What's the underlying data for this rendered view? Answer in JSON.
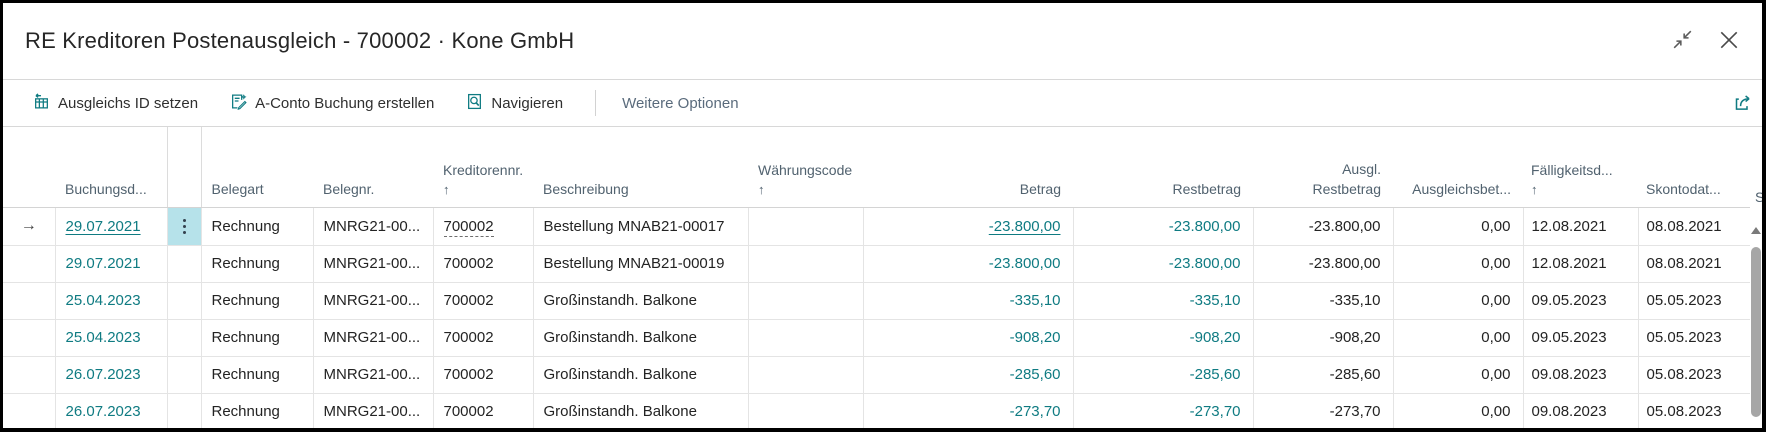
{
  "window": {
    "title": "RE Kreditoren Postenausgleich - 700002 · Kone GmbH"
  },
  "toolbar": {
    "actions": [
      {
        "label": "Ausgleichs ID setzen",
        "icon": "set-applies-id-icon"
      },
      {
        "label": "A-Conto Buchung erstellen",
        "icon": "create-prepayment-icon"
      },
      {
        "label": "Navigieren",
        "icon": "navigate-icon"
      }
    ],
    "more_label": "Weitere Optionen",
    "share_icon": "share-icon"
  },
  "colors": {
    "accent_teal": "#0f7b82",
    "selected_cell_bg": "#b6e2ea",
    "header_text": "#51626f"
  },
  "table": {
    "partial_column_label": "S",
    "columns": [
      {
        "key": "marker",
        "lines": [],
        "align": "center",
        "type": "row-marker"
      },
      {
        "key": "buchungsdatum",
        "lines": [
          "Buchungsd..."
        ],
        "align": "left"
      },
      {
        "key": "menu",
        "lines": [],
        "align": "center",
        "type": "row-menu"
      },
      {
        "key": "belegart",
        "lines": [
          "Belegart"
        ],
        "align": "left"
      },
      {
        "key": "belegnr",
        "lines": [
          "Belegnr."
        ],
        "align": "left"
      },
      {
        "key": "kreditorennr",
        "lines": [
          "Kreditorennr."
        ],
        "align": "left",
        "sort": "asc"
      },
      {
        "key": "beschreibung",
        "lines": [
          "Beschreibung"
        ],
        "align": "left"
      },
      {
        "key": "waehrungscode",
        "lines": [
          "Währungscode"
        ],
        "align": "left",
        "sort": "asc"
      },
      {
        "key": "betrag",
        "lines": [
          "Betrag"
        ],
        "align": "right"
      },
      {
        "key": "restbetrag",
        "lines": [
          "Restbetrag"
        ],
        "align": "right"
      },
      {
        "key": "ausgl_restbetrag",
        "lines": [
          "Ausgl.",
          "Restbetrag"
        ],
        "align": "right"
      },
      {
        "key": "ausgleichsbetrag",
        "lines": [
          "Ausgleichsbet..."
        ],
        "align": "right"
      },
      {
        "key": "faelligkeitsdatum",
        "lines": [
          "Fälligkeitsd..."
        ],
        "align": "left",
        "sort": "asc"
      },
      {
        "key": "skontodatum",
        "lines": [
          "Skontodat..."
        ],
        "align": "left"
      },
      {
        "key": "partial",
        "lines": [],
        "align": "left",
        "type": "clipped"
      }
    ],
    "rows": [
      {
        "selected": true,
        "buchungsdatum": "29.07.2021",
        "belegart": "Rechnung",
        "belegnr": "MNRG21-00...",
        "kreditorennr": "700002",
        "beschreibung": "Bestellung MNAB21-00017",
        "waehrungscode": "",
        "betrag": "-23.800,00",
        "restbetrag": "-23.800,00",
        "ausgl_restbetrag": "-23.800,00",
        "ausgleichsbetrag": "0,00",
        "faelligkeitsdatum": "12.08.2021",
        "skontodatum": "08.08.2021"
      },
      {
        "selected": false,
        "buchungsdatum": "29.07.2021",
        "belegart": "Rechnung",
        "belegnr": "MNRG21-00...",
        "kreditorennr": "700002",
        "beschreibung": "Bestellung MNAB21-00019",
        "waehrungscode": "",
        "betrag": "-23.800,00",
        "restbetrag": "-23.800,00",
        "ausgl_restbetrag": "-23.800,00",
        "ausgleichsbetrag": "0,00",
        "faelligkeitsdatum": "12.08.2021",
        "skontodatum": "08.08.2021"
      },
      {
        "selected": false,
        "buchungsdatum": "25.04.2023",
        "belegart": "Rechnung",
        "belegnr": "MNRG21-00...",
        "kreditorennr": "700002",
        "beschreibung": "Großinstandh. Balkone",
        "waehrungscode": "",
        "betrag": "-335,10",
        "restbetrag": "-335,10",
        "ausgl_restbetrag": "-335,10",
        "ausgleichsbetrag": "0,00",
        "faelligkeitsdatum": "09.05.2023",
        "skontodatum": "05.05.2023"
      },
      {
        "selected": false,
        "buchungsdatum": "25.04.2023",
        "belegart": "Rechnung",
        "belegnr": "MNRG21-00...",
        "kreditorennr": "700002",
        "beschreibung": "Großinstandh. Balkone",
        "waehrungscode": "",
        "betrag": "-908,20",
        "restbetrag": "-908,20",
        "ausgl_restbetrag": "-908,20",
        "ausgleichsbetrag": "0,00",
        "faelligkeitsdatum": "09.05.2023",
        "skontodatum": "05.05.2023"
      },
      {
        "selected": false,
        "buchungsdatum": "26.07.2023",
        "belegart": "Rechnung",
        "belegnr": "MNRG21-00...",
        "kreditorennr": "700002",
        "beschreibung": "Großinstandh. Balkone",
        "waehrungscode": "",
        "betrag": "-285,60",
        "restbetrag": "-285,60",
        "ausgl_restbetrag": "-285,60",
        "ausgleichsbetrag": "0,00",
        "faelligkeitsdatum": "09.08.2023",
        "skontodatum": "05.08.2023"
      },
      {
        "selected": false,
        "buchungsdatum": "26.07.2023",
        "belegart": "Rechnung",
        "belegnr": "MNRG21-00...",
        "kreditorennr": "700002",
        "beschreibung": "Großinstandh. Balkone",
        "waehrungscode": "",
        "betrag": "-273,70",
        "restbetrag": "-273,70",
        "ausgl_restbetrag": "-273,70",
        "ausgleichsbetrag": "0,00",
        "faelligkeitsdatum": "09.08.2023",
        "skontodatum": "05.08.2023"
      }
    ]
  }
}
